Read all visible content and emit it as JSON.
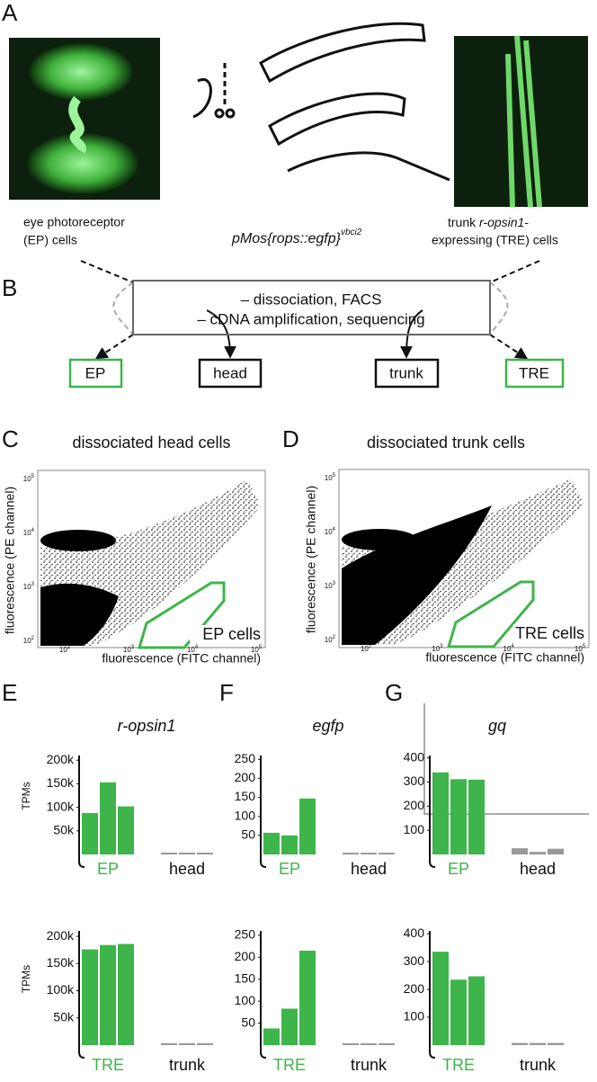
{
  "panel_labels": [
    "A",
    "B",
    "C",
    "D",
    "E",
    "F",
    "G"
  ],
  "panel_a": {
    "left_caption": [
      "eye photoreceptor",
      "(EP) cells"
    ],
    "construct": "pMos{rops::egfp}",
    "construct_sup": "vbci2",
    "right_caption": {
      "pre": "trunk ",
      "gene": "r-opsin1",
      "post": "-",
      "line2": "expressing (TRE) cells"
    }
  },
  "panel_b": {
    "steps": [
      "– dissociation, FACS",
      "– cDNA amplification, sequencing"
    ],
    "boxes": [
      "EP",
      "head",
      "trunk",
      "TRE"
    ]
  },
  "facs": [
    {
      "title": "dissociated head cells",
      "gate": "EP cells"
    },
    {
      "title": "dissociated trunk cells",
      "gate": "TRE cells"
    }
  ],
  "facs_xlabel": "fluorescence (FITC channel)",
  "facs_ylabel": "fluorescence (PE channel)",
  "facs_tick_base": "10",
  "facs_exponents": [
    "2",
    "3",
    "4",
    "5"
  ],
  "y_label": "TPMs",
  "chart_data": [
    {
      "type": "bar",
      "title": "r-opsin1",
      "categories": [
        "EP",
        "head"
      ],
      "colors": [
        "#3db54a",
        "#999999"
      ],
      "values": [
        [
          88000,
          153000,
          102000
        ],
        [
          1000,
          1000,
          1000
        ]
      ],
      "ylim": [
        0,
        210000
      ],
      "yticks": [
        {
          "value": 50000,
          "label": "50k"
        },
        {
          "value": 100000,
          "label": "100k"
        },
        {
          "value": 150000,
          "label": "150k"
        },
        {
          "value": 200000,
          "label": "200k"
        }
      ]
    },
    {
      "type": "bar",
      "title": "egfp",
      "categories": [
        "EP",
        "head"
      ],
      "colors": [
        "#3db54a",
        "#999999"
      ],
      "values": [
        [
          57,
          50,
          147
        ],
        [
          1,
          1,
          1
        ]
      ],
      "ylim": [
        0,
        260
      ],
      "yticks": [
        50,
        100,
        150,
        200,
        250
      ]
    },
    {
      "type": "bar",
      "title": "gq",
      "categories": [
        "EP",
        "head"
      ],
      "colors": [
        "#3db54a",
        "#999999"
      ],
      "values": [
        [
          340,
          312,
          310
        ],
        [
          20,
          5,
          18
        ]
      ],
      "ylim": [
        0,
        410
      ],
      "yticks": [
        100,
        200,
        300,
        400
      ]
    },
    {
      "type": "bar",
      "categories": [
        "TRE",
        "trunk"
      ],
      "colors": [
        "#3db54a",
        "#999999"
      ],
      "values": [
        [
          176000,
          184000,
          186000
        ],
        [
          1000,
          1000,
          1000
        ]
      ],
      "ylim": [
        0,
        210000
      ],
      "yticks": [
        {
          "value": 50000,
          "label": "50k"
        },
        {
          "value": 100000,
          "label": "100k"
        },
        {
          "value": 150000,
          "label": "150k"
        },
        {
          "value": 200000,
          "label": "200k"
        }
      ]
    },
    {
      "type": "bar",
      "categories": [
        "TRE",
        "trunk"
      ],
      "colors": [
        "#3db54a",
        "#999999"
      ],
      "values": [
        [
          38,
          83,
          215
        ],
        [
          1,
          1,
          1
        ]
      ],
      "ylim": [
        0,
        260
      ],
      "yticks": [
        50,
        100,
        150,
        200,
        250
      ]
    },
    {
      "type": "bar",
      "categories": [
        "TRE",
        "trunk"
      ],
      "colors": [
        "#3db54a",
        "#999999"
      ],
      "values": [
        [
          335,
          235,
          247
        ],
        [
          3,
          3,
          3
        ]
      ],
      "ylim": [
        0,
        410
      ],
      "yticks": [
        100,
        200,
        300,
        400
      ]
    }
  ]
}
